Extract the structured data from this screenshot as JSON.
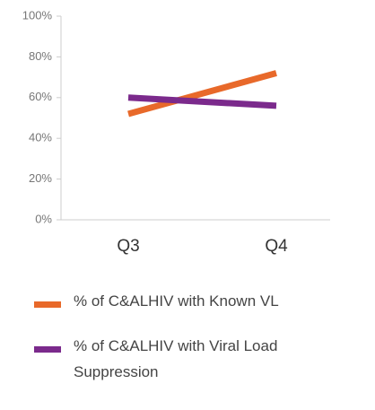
{
  "chart_data": {
    "type": "line",
    "categories": [
      "Q3",
      "Q4"
    ],
    "series": [
      {
        "name": "% of C&ALHIV with Known VL",
        "color": "#e8692a",
        "values": [
          52,
          72
        ]
      },
      {
        "name": "% of C&ALHIV with Viral Load Suppression",
        "color": "#7b2a8c",
        "values": [
          60,
          56
        ]
      }
    ],
    "ylim": [
      0,
      100
    ],
    "yticks": [
      {
        "value": 0,
        "label": "0%"
      },
      {
        "value": 20,
        "label": "20%"
      },
      {
        "value": 40,
        "label": "40%"
      },
      {
        "value": 60,
        "label": "60%"
      },
      {
        "value": 80,
        "label": "80%"
      },
      {
        "value": 100,
        "label": "100%"
      }
    ],
    "grid": false
  }
}
